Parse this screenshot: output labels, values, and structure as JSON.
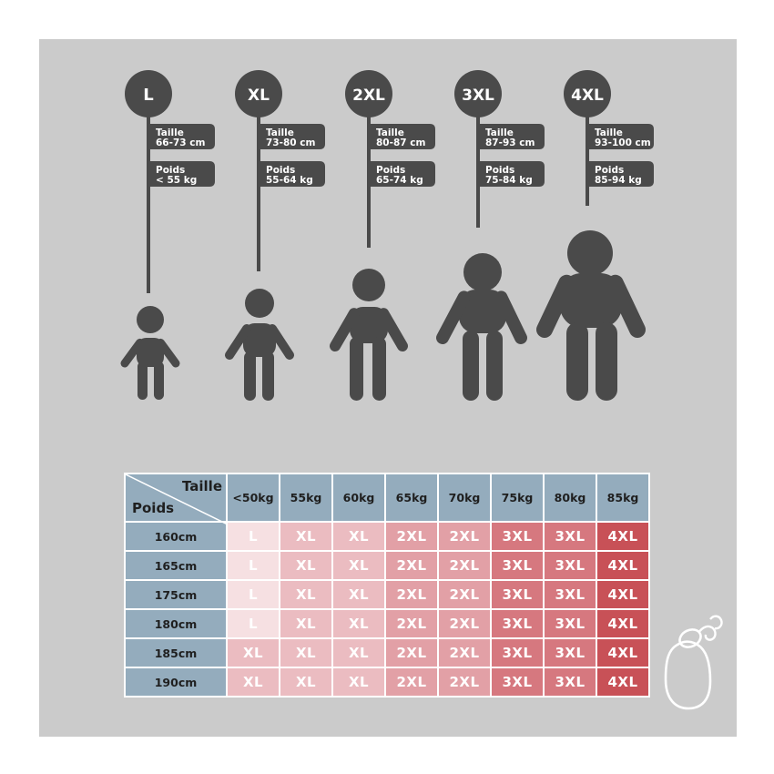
{
  "colors": {
    "panel": "#cbcbcb",
    "figure": "#4a4a4a",
    "header_blue": "#94acbd",
    "size_L": "#f6e0e2",
    "size_XL": "#ebbcc1",
    "size_2XL": "#e2a0a6",
    "size_3XL": "#d6787f",
    "size_4XL": "#c85157"
  },
  "sizes": [
    {
      "label": "L",
      "taille_label": "Taille",
      "taille": "66-73 cm",
      "poids_label": "Poids",
      "poids": "< 55 kg"
    },
    {
      "label": "XL",
      "taille_label": "Taille",
      "taille": "73-80 cm",
      "poids_label": "Poids",
      "poids": "55-64 kg"
    },
    {
      "label": "2XL",
      "taille_label": "Taille",
      "taille": "80-87 cm",
      "poids_label": "Poids",
      "poids": "65-74 kg"
    },
    {
      "label": "3XL",
      "taille_label": "Taille",
      "taille": "87-93 cm",
      "poids_label": "Poids",
      "poids": "75-84 kg"
    },
    {
      "label": "4XL",
      "taille_label": "Taille",
      "taille": "93-100 cm",
      "poids_label": "Poids",
      "poids": "85-94 kg"
    }
  ],
  "table": {
    "corner_taille": "Taille",
    "corner_poids": "Poids",
    "columns": [
      "<50kg",
      "55kg",
      "60kg",
      "65kg",
      "70kg",
      "75kg",
      "80kg",
      "85kg"
    ],
    "rows": [
      {
        "label": "160cm",
        "cells": [
          "L",
          "XL",
          "XL",
          "2XL",
          "2XL",
          "3XL",
          "3XL",
          "4XL"
        ]
      },
      {
        "label": "165cm",
        "cells": [
          "L",
          "XL",
          "XL",
          "2XL",
          "2XL",
          "3XL",
          "3XL",
          "4XL"
        ]
      },
      {
        "label": "175cm",
        "cells": [
          "L",
          "XL",
          "XL",
          "2XL",
          "2XL",
          "3XL",
          "3XL",
          "4XL"
        ]
      },
      {
        "label": "180cm",
        "cells": [
          "L",
          "XL",
          "XL",
          "2XL",
          "2XL",
          "3XL",
          "3XL",
          "4XL"
        ]
      },
      {
        "label": "185cm",
        "cells": [
          "XL",
          "XL",
          "XL",
          "2XL",
          "2XL",
          "3XL",
          "3XL",
          "4XL"
        ]
      },
      {
        "label": "190cm",
        "cells": [
          "XL",
          "XL",
          "XL",
          "2XL",
          "2XL",
          "3XL",
          "3XL",
          "4XL"
        ]
      }
    ]
  },
  "logo_icon": "acorn-outline-icon"
}
